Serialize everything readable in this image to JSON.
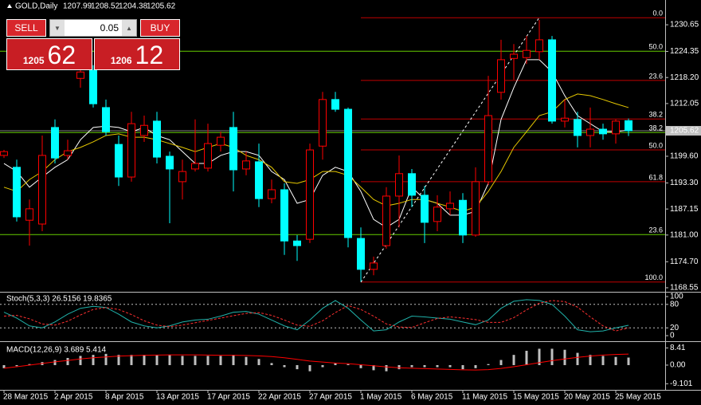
{
  "header": {
    "symbol": "GOLD,Daily",
    "ohlc": [
      1207.99,
      1208.52,
      1204.38,
      1205.62
    ]
  },
  "trade_panel": {
    "sell": "SELL",
    "buy": "BUY",
    "lot": "0.05",
    "bid_big": "1205",
    "bid_small": "62",
    "ask_big": "1206",
    "ask_small": "12"
  },
  "chart_data": [
    {
      "type": "candlestick",
      "categories": [
        "28 Mar 2015",
        null,
        null,
        null,
        "2 Apr 2015",
        null,
        null,
        null,
        "8 Apr 2015",
        null,
        null,
        null,
        "13 Apr 2015",
        null,
        null,
        null,
        "17 Apr 2015",
        null,
        null,
        null,
        "22 Apr 2015",
        null,
        null,
        null,
        "27 Apr 2015",
        null,
        null,
        null,
        "1 May 2015",
        null,
        null,
        null,
        "6 May 2015",
        null,
        null,
        null,
        "11 May 2015",
        null,
        null,
        null,
        "15 May 2015",
        null,
        null,
        null,
        "20 May 2015",
        null,
        null,
        null,
        "25 May 2015",
        null
      ],
      "open": [
        1199.8,
        1197.0,
        1184.5,
        1183.6,
        1206.4,
        1199.8,
        1218.0,
        1219.9,
        1211.1,
        1202.4,
        1194.7,
        1204.5,
        1207.9,
        1199.6,
        1193.6,
        1196.6,
        1196.8,
        1202.2,
        1206.4,
        1196.6,
        1198.3,
        1189.6,
        1191.7,
        1179.6,
        1180.0,
        1202.0,
        1213.0,
        1210.7,
        1180.2,
        1172.9,
        1178.5,
        1190.2,
        1195.5,
        1190.4,
        1184.2,
        1187.2,
        1189.2,
        1181.0,
        1193.6,
        1214.7,
        1222.7,
        1222.9,
        1224.3,
        1227.1,
        1207.9,
        1208.3,
        1204.5,
        1206.0,
        1204.9,
        1207.99
      ],
      "high": [
        1201.1,
        1198.8,
        1189.4,
        1204.5,
        1208.3,
        1203.5,
        1221.4,
        1221.1,
        1213.0,
        1204.5,
        1210.1,
        1209.2,
        1210.1,
        1200.7,
        1198.8,
        1208.3,
        1207.3,
        1205.4,
        1210.1,
        1200.7,
        1202.6,
        1194.1,
        1193.2,
        1181.0,
        1202.6,
        1214.8,
        1214.8,
        1211.1,
        1182.8,
        1175.9,
        1192.3,
        1199.8,
        1196.6,
        1192.6,
        1190.4,
        1191.3,
        1190.9,
        1197.0,
        1218.6,
        1227.1,
        1226.1,
        1228.0,
        1231.8,
        1228.0,
        1213.0,
        1210.1,
        1211.1,
        1207.3,
        1208.3,
        1208.52
      ],
      "low": [
        1199.2,
        1184.2,
        1178.5,
        1181.9,
        1197.9,
        1198.8,
        1215.8,
        1211.1,
        1204.5,
        1192.6,
        1193.6,
        1203.0,
        1197.9,
        1183.8,
        1189.4,
        1196.0,
        1196.0,
        1200.7,
        1191.3,
        1195.1,
        1187.6,
        1188.5,
        1176.3,
        1174.9,
        1179.1,
        1198.8,
        1210.1,
        1178.1,
        1170.0,
        1171.5,
        1177.8,
        1182.8,
        1187.6,
        1179.1,
        1181.9,
        1185.7,
        1179.1,
        1180.6,
        1192.8,
        1213.0,
        1217.7,
        1221.4,
        1222.4,
        1207.3,
        1206.4,
        1201.7,
        1201.7,
        1203.5,
        1202.6,
        1204.38
      ],
      "close": [
        1200.7,
        1185.3,
        1187.2,
        1199.8,
        1199.2,
        1200.9,
        1219.5,
        1212.0,
        1205.4,
        1194.7,
        1207.3,
        1206.9,
        1199.4,
        1196.6,
        1196.0,
        1197.9,
        1202.6,
        1204.1,
        1196.4,
        1198.5,
        1189.6,
        1191.7,
        1179.6,
        1178.5,
        1201.1,
        1213.0,
        1210.7,
        1180.4,
        1172.9,
        1174.4,
        1190.2,
        1195.5,
        1190.4,
        1184.0,
        1187.6,
        1188.5,
        1181.0,
        1193.6,
        1209.2,
        1222.4,
        1223.7,
        1224.6,
        1227.1,
        1207.9,
        1208.6,
        1204.5,
        1206.0,
        1204.9,
        1207.9,
        1205.62
      ],
      "up_color": "#ff0000",
      "down_color": "#00ffff",
      "moving_averages": [
        {
          "color": "#ffffff",
          "values": [
            1197.9,
            1196.0,
            1192.3,
            1194.7,
            1197.0,
            1198.8,
            1203.5,
            1206.4,
            1206.7,
            1206.4,
            1205.4,
            1206.4,
            1204.5,
            1203.5,
            1200.7,
            1197.9,
            1197.9,
            1199.8,
            1200.7,
            1200.7,
            1199.8,
            1196.0,
            1194.1,
            1188.5,
            1189.4,
            1195.1,
            1197.0,
            1196.0,
            1191.3,
            1184.7,
            1182.8,
            1184.7,
            1192.3,
            1189.4,
            1188.5,
            1185.7,
            1185.7,
            1186.6,
            1193.2,
            1208.3,
            1215.8,
            1222.4,
            1222.4,
            1219.5,
            1213.9,
            1209.2,
            1207.3,
            1205.4,
            1205.4,
            1205.8
          ]
        },
        {
          "color": "#e6c800",
          "values": [
            1192.3,
            1191.3,
            1194.1,
            1196.0,
            1198.8,
            1200.7,
            1201.7,
            1203.0,
            1204.5,
            1204.9,
            1204.1,
            1204.1,
            1203.5,
            1202.6,
            1201.7,
            1200.7,
            1201.7,
            1202.6,
            1201.7,
            1199.8,
            1198.8,
            1197.0,
            1193.6,
            1193.2,
            1194.1,
            1196.0,
            1196.0,
            1195.1,
            1192.3,
            1189.4,
            1187.9,
            1188.5,
            1189.4,
            1189.4,
            1188.5,
            1187.6,
            1186.6,
            1187.6,
            1191.3,
            1196.0,
            1201.7,
            1205.4,
            1209.2,
            1210.1,
            1213.0,
            1214.3,
            1213.9,
            1213.0,
            1212.0,
            1211.1
          ]
        }
      ],
      "fibonacci": [
        {
          "color": "#c00000",
          "levels": [
            {
              "label": "0.0",
              "price": 1232.3
            },
            {
              "label": "23.6",
              "price": 1217.5
            },
            {
              "label": "38.2",
              "price": 1208.4
            },
            {
              "label": "50.0",
              "price": 1201.1
            },
            {
              "label": "61.8",
              "price": 1193.6
            },
            {
              "label": "100.0",
              "price": 1169.9
            }
          ]
        },
        {
          "color": "#66cc00",
          "levels": [
            {
              "label": "50.0",
              "price": 1224.4
            },
            {
              "label": "38.2",
              "price": 1205.2
            },
            {
              "label": "23.6",
              "price": 1181.1
            }
          ]
        }
      ],
      "last_price": 1205.62,
      "ylim": [
        1167.6,
        1236.5
      ],
      "yticks": [
        1230.65,
        1224.35,
        {
          "value": 1218.2,
          "label": "1218.20"
        },
        1212.05,
        {
          "value": 1199.6,
          "label": "1199.60"
        },
        {
          "value": 1193.3,
          "label": "1193.30"
        },
        1187.15,
        {
          "value": 1181,
          "label": "1181.00"
        },
        {
          "value": 1174.7,
          "label": "1174.70"
        },
        1168.55
      ]
    },
    {
      "type": "line",
      "title": "Stoch(5,3,3) 26.5156 19.8365",
      "series": [
        {
          "color": "#20b2aa",
          "dash": false,
          "values": [
            60,
            45,
            25,
            20,
            35,
            55,
            70,
            75,
            72,
            55,
            35,
            25,
            20,
            25,
            35,
            40,
            42,
            50,
            60,
            62,
            55,
            40,
            25,
            15,
            40,
            70,
            90,
            70,
            40,
            12,
            15,
            35,
            50,
            48,
            45,
            42,
            35,
            28,
            40,
            70,
            88,
            92,
            90,
            80,
            50,
            15,
            10,
            12,
            20,
            26.5156
          ]
        },
        {
          "color": "#ff3030",
          "dash": true,
          "values": [
            50,
            52,
            43,
            30,
            27,
            37,
            53,
            67,
            72,
            67,
            54,
            38,
            27,
            23,
            27,
            33,
            39,
            45,
            51,
            57,
            59,
            52,
            40,
            27,
            24,
            38,
            59,
            77,
            67,
            50,
            30,
            22,
            21,
            33,
            44,
            48,
            45,
            41,
            34,
            34,
            46,
            66,
            83,
            90,
            87,
            73,
            48,
            25,
            12,
            19.8365
          ]
        }
      ],
      "levels": [
        80,
        20
      ],
      "ylim": [
        -12.2,
        110.2
      ],
      "yticks": [
        100,
        80,
        20,
        0
      ]
    },
    {
      "type": "bar",
      "title": "MACD(12,26,9) 3.689 5.414",
      "color": "#c0c0c0",
      "values": [
        -1.5,
        -0.5,
        0.5,
        1.5,
        2.5,
        3.5,
        4.5,
        5,
        5.5,
        5,
        5,
        5,
        5,
        5,
        4.5,
        4.5,
        4.5,
        4.5,
        5,
        4,
        3,
        1,
        -1,
        -2,
        -3,
        -1,
        1,
        0.5,
        -1.5,
        -2.5,
        -3,
        -2,
        -1,
        -1,
        -1,
        -1,
        -2,
        -1.5,
        0.5,
        2.5,
        5,
        7,
        8,
        8,
        7.5,
        6,
        5,
        4.5,
        4,
        3.689
      ],
      "signal": {
        "color": "#ff0000",
        "values": [
          -1.5,
          -0.8,
          0,
          0.8,
          1.6,
          2.3,
          3,
          3.6,
          4,
          4.4,
          4.6,
          4.8,
          4.9,
          5,
          5,
          5,
          4.9,
          4.8,
          4.8,
          4.7,
          4.5,
          4.2,
          3.6,
          2.8,
          2,
          1.5,
          1,
          0.7,
          0.2,
          -0.3,
          -0.9,
          -1.3,
          -1.5,
          -1.7,
          -1.9,
          -2.1,
          -2.3,
          -2.4,
          -2.2,
          -1.6,
          -0.8,
          0.2,
          1.2,
          2.2,
          3,
          3.8,
          4.4,
          4.9,
          5.2,
          5.414
        ]
      },
      "ylim": [
        -11.7,
        10.9
      ],
      "yticks": [
        8.41,
        {
          "value": 0,
          "label": "0.00"
        },
        -9.101
      ]
    }
  ]
}
